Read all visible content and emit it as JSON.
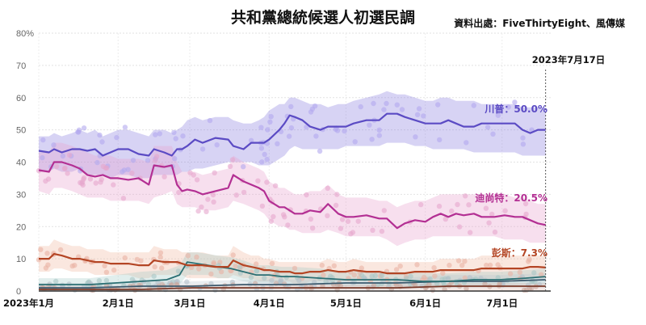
{
  "chart_data": {
    "type": "line",
    "title": "共和黨總統候選人初選民調",
    "source": "資料出處：FiveThirtyEight、風傳媒",
    "date_marker": "2023年7月17日",
    "y_ticks": [
      "0",
      "10",
      "20",
      "30",
      "40",
      "50",
      "60",
      "70",
      "80%"
    ],
    "ylim": [
      0,
      80
    ],
    "grid": true,
    "x_range_days": [
      0,
      200
    ],
    "x_ticks": [
      {
        "day": 0,
        "label": "2023年1月"
      },
      {
        "day": 31,
        "label": "2月1日"
      },
      {
        "day": 59,
        "label": "3月1日"
      },
      {
        "day": 90,
        "label": "4月1日"
      },
      {
        "day": 120,
        "label": "5月1日"
      },
      {
        "day": 151,
        "label": "6月1日"
      },
      {
        "day": 181,
        "label": "7月1日"
      }
    ],
    "series": [
      {
        "name": "川普",
        "label": "川普：50.0%",
        "color": "#5b4bc4",
        "band_color": "#8d80e0",
        "points_color": "#b3a8ee",
        "x": [
          0,
          4,
          6,
          9,
          13,
          16,
          19,
          22,
          25,
          28,
          31,
          35,
          39,
          43,
          45,
          49,
          52,
          54,
          56,
          58,
          61,
          64,
          69,
          74,
          76,
          80,
          83,
          86,
          88,
          90,
          94,
          96,
          98,
          100,
          103,
          106,
          110,
          113,
          117,
          120,
          123,
          128,
          133,
          136,
          140,
          143,
          147,
          151,
          154,
          157,
          160,
          163,
          166,
          170,
          173,
          178,
          182,
          186,
          189,
          192,
          195,
          198
        ],
        "y": [
          43.5,
          43,
          44,
          43,
          44,
          44,
          43.5,
          44,
          42,
          43,
          44,
          44,
          42.5,
          42,
          44,
          43,
          42,
          44,
          44,
          45,
          47,
          46,
          47.5,
          47,
          45,
          44,
          46,
          46,
          46,
          47,
          50,
          52,
          54.5,
          54,
          53,
          51,
          50,
          51,
          51,
          51,
          52,
          53,
          53,
          55,
          55,
          54,
          53,
          52,
          52,
          52,
          53,
          52,
          51,
          51,
          52,
          52,
          52,
          52,
          50,
          49,
          50,
          50
        ],
        "band_low": [
          37,
          37,
          38,
          37,
          37,
          38,
          36,
          36,
          36,
          35,
          36,
          36,
          35,
          35,
          36,
          36,
          36,
          36,
          37,
          37,
          38,
          38,
          39,
          40,
          40,
          40,
          40,
          39,
          39,
          39,
          41,
          42,
          44,
          45,
          44,
          44,
          44,
          44,
          44,
          45,
          45,
          45,
          45,
          46,
          46,
          46,
          45,
          45,
          44,
          44,
          44,
          44,
          44,
          43,
          43,
          43,
          43,
          43,
          42,
          42,
          42,
          42
        ],
        "band_high": [
          48,
          48,
          49,
          48,
          49,
          50,
          49,
          50,
          48,
          49,
          50,
          50,
          49,
          48,
          50,
          50,
          49,
          50,
          51,
          53,
          54,
          53,
          54,
          54,
          53,
          52,
          52,
          53,
          54,
          56,
          58,
          58,
          60,
          60,
          59,
          58,
          58,
          57,
          58,
          58,
          59,
          60,
          61,
          62,
          61,
          61,
          60,
          59,
          59,
          60,
          60,
          59,
          59,
          59,
          58,
          58,
          58,
          58,
          57,
          57,
          57,
          57
        ]
      },
      {
        "name": "迪尚特",
        "label": "迪尚特：20.5%",
        "color": "#b32f93",
        "band_color": "#e8a3cf",
        "points_color": "#e6a6cd",
        "x": [
          0,
          4,
          6,
          9,
          13,
          16,
          19,
          22,
          25,
          28,
          31,
          35,
          39,
          43,
          45,
          49,
          52,
          54,
          56,
          58,
          61,
          64,
          69,
          74,
          76,
          80,
          83,
          86,
          88,
          90,
          94,
          96,
          98,
          100,
          103,
          106,
          110,
          113,
          117,
          120,
          123,
          128,
          133,
          136,
          140,
          143,
          147,
          151,
          154,
          157,
          160,
          163,
          166,
          170,
          173,
          178,
          182,
          186,
          189,
          192,
          195,
          198
        ],
        "y": [
          37.5,
          37,
          40,
          40,
          39,
          38,
          36,
          35.5,
          36,
          35,
          35,
          34.5,
          35,
          33,
          39,
          38.5,
          39,
          33,
          31,
          31.5,
          31,
          30,
          31,
          32,
          36,
          34,
          33,
          32,
          31,
          28,
          26,
          26,
          25,
          24,
          24,
          25,
          24.5,
          27,
          24,
          23,
          23,
          23.5,
          22.5,
          22.5,
          19.5,
          21,
          22,
          21.5,
          23,
          24,
          23,
          24,
          23.5,
          24,
          23,
          23,
          23.5,
          23,
          23,
          22,
          21,
          20.5
        ],
        "band_low": [
          31,
          30,
          32,
          32,
          31,
          30,
          29,
          29,
          29,
          28,
          28,
          28,
          28,
          27,
          29,
          30,
          31,
          27,
          26,
          26,
          26,
          25,
          25,
          26,
          28,
          27,
          26,
          25,
          24,
          22,
          20,
          20,
          19,
          19,
          18,
          18,
          18,
          19,
          18,
          17,
          17,
          17,
          17,
          16,
          14,
          15,
          16,
          16,
          17,
          17,
          17,
          17,
          17,
          17,
          17,
          17,
          16,
          16,
          16,
          15,
          15,
          15
        ],
        "band_high": [
          43,
          43,
          46,
          46,
          45,
          44,
          43,
          42,
          42,
          42,
          41,
          41,
          41,
          40,
          45,
          45,
          45,
          40,
          37,
          37,
          37,
          36,
          37,
          38,
          42,
          40,
          39,
          38,
          37,
          34,
          32,
          32,
          31,
          30,
          30,
          31,
          31,
          33,
          30,
          29,
          29,
          29,
          28,
          28,
          26,
          27,
          28,
          28,
          29,
          30,
          30,
          30,
          30,
          30,
          30,
          30,
          30,
          29,
          29,
          28,
          27,
          27
        ]
      },
      {
        "name": "彭斯",
        "label": "彭斯：7.3%",
        "color": "#b44524",
        "band_color": "#f0b9a4",
        "points_color": "#e9b2a3",
        "x": [
          0,
          4,
          6,
          9,
          13,
          16,
          19,
          22,
          25,
          28,
          31,
          35,
          39,
          43,
          45,
          49,
          52,
          54,
          56,
          58,
          61,
          64,
          69,
          74,
          76,
          80,
          83,
          86,
          88,
          90,
          94,
          96,
          98,
          100,
          103,
          106,
          110,
          113,
          117,
          120,
          123,
          128,
          133,
          136,
          140,
          143,
          147,
          151,
          154,
          157,
          160,
          163,
          166,
          170,
          173,
          178,
          182,
          186,
          189,
          192,
          195,
          198
        ],
        "y": [
          10,
          10,
          11.5,
          11,
          10,
          10,
          9.5,
          9,
          9,
          8.5,
          8.5,
          8.5,
          8,
          8,
          9.5,
          9,
          9,
          9,
          8.5,
          8,
          8,
          8,
          7.5,
          7.5,
          9.5,
          8,
          7.5,
          7,
          6.5,
          6.5,
          6,
          6,
          6,
          5.5,
          5.5,
          6,
          6,
          6.5,
          6,
          6,
          6.5,
          6,
          6,
          5.5,
          5.5,
          5.5,
          6,
          6,
          6,
          6.5,
          6.5,
          6.5,
          6.5,
          6.5,
          7,
          7,
          7,
          7,
          7,
          7.5,
          7.5,
          7.3
        ],
        "band_low": [
          6,
          6,
          7,
          7,
          6,
          6,
          6,
          5,
          5,
          5,
          5,
          5,
          4,
          4,
          5,
          5,
          5,
          5,
          5,
          4,
          4,
          4,
          4,
          4,
          5,
          4,
          4,
          3,
          3,
          3,
          3,
          3,
          3,
          2,
          2,
          3,
          3,
          3,
          3,
          3,
          3,
          3,
          3,
          2,
          2,
          2,
          3,
          3,
          3,
          3,
          3,
          3,
          3,
          3,
          3,
          3,
          3,
          3,
          3,
          4,
          4,
          4
        ],
        "band_high": [
          14,
          14,
          16,
          15,
          14,
          14,
          13,
          13,
          13,
          12,
          12,
          12,
          12,
          12,
          14,
          13,
          13,
          13,
          12,
          12,
          12,
          12,
          11,
          11,
          14,
          12,
          11,
          11,
          10,
          10,
          9,
          9,
          9,
          9,
          9,
          9,
          9,
          10,
          9,
          9,
          10,
          9,
          9,
          9,
          9,
          9,
          9,
          9,
          9,
          10,
          10,
          10,
          10,
          10,
          11,
          11,
          11,
          11,
          11,
          11,
          11,
          11
        ]
      },
      {
        "name": "",
        "label": "",
        "color": "#2b6f73",
        "band_color": "#9cc6c4",
        "points_color": "#a8c7c5",
        "x": [
          0,
          10,
          20,
          30,
          40,
          50,
          55,
          58,
          62,
          66,
          70,
          75,
          80,
          85,
          90,
          95,
          100,
          110,
          120,
          130,
          140,
          150,
          160,
          170,
          180,
          190,
          198
        ],
        "y": [
          2,
          2,
          2,
          2.5,
          3,
          3.5,
          5,
          9,
          8.5,
          8,
          7.5,
          7,
          6,
          5,
          5,
          4.5,
          4.5,
          4,
          3.5,
          3.5,
          3.5,
          3,
          3,
          3.5,
          3.5,
          4,
          4.5
        ],
        "band_low": [
          0,
          0,
          0,
          0,
          0.5,
          1,
          2,
          5,
          5,
          5,
          4,
          4,
          3,
          2.5,
          2.5,
          2,
          2,
          2,
          1.5,
          1.5,
          1.5,
          1,
          1,
          1.5,
          1.5,
          2,
          2
        ],
        "band_high": [
          4,
          4,
          4,
          5,
          6,
          6.5,
          8,
          12,
          12,
          11.5,
          11,
          10.5,
          9.5,
          8,
          8,
          7.5,
          7.5,
          7,
          6,
          6,
          6,
          5.5,
          5.5,
          6,
          6,
          6.5,
          7
        ]
      },
      {
        "name": "",
        "label": "",
        "color": "#3d5a6e",
        "band_color": "#b9c6d1",
        "points_color": "#b4c0ca",
        "x": [
          0,
          20,
          40,
          60,
          80,
          100,
          120,
          140,
          160,
          180,
          198
        ],
        "y": [
          1,
          1,
          1.5,
          1.5,
          2,
          2,
          2.5,
          2.5,
          3,
          3,
          3.5
        ],
        "band_low": [
          0,
          0,
          0,
          0,
          0,
          0,
          0.5,
          0.5,
          1,
          1,
          1
        ],
        "band_high": [
          2.5,
          2.5,
          3,
          3,
          3.5,
          3.5,
          4,
          4,
          5,
          5,
          5.5
        ]
      },
      {
        "name": "",
        "label": "",
        "color": "#7a3a2a",
        "band_color": "#d9b3a8",
        "points_color": "#c9a79d",
        "x": [
          0,
          20,
          40,
          60,
          80,
          100,
          120,
          140,
          160,
          180,
          198
        ],
        "y": [
          0.5,
          0.5,
          0.5,
          1,
          1,
          1,
          1,
          1,
          1.5,
          1.5,
          1.5
        ],
        "band_low": [
          0,
          0,
          0,
          0,
          0,
          0,
          0,
          0,
          0,
          0,
          0
        ],
        "band_high": [
          1.5,
          1.5,
          1.5,
          2,
          2,
          2,
          2,
          2,
          2.5,
          2.5,
          2.5
        ]
      }
    ]
  }
}
